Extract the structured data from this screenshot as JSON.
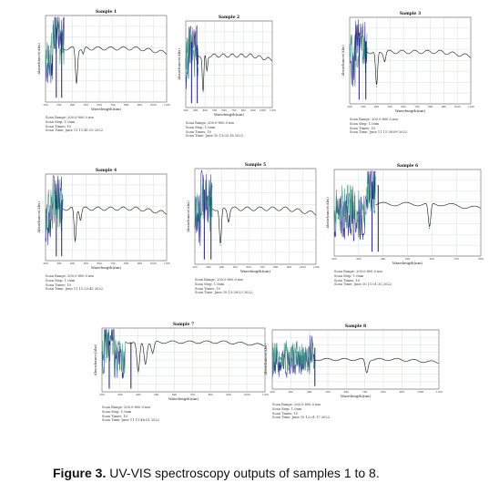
{
  "caption": {
    "label": "Figure 3.",
    "text": " UV-VIS spectroscopy outputs of samples 1 to 8."
  },
  "colors": {
    "trace_dark": "#1a1a7a",
    "trace_teal": "#2e8b7a",
    "baseline": "#111111",
    "grid": "#b8c9b8"
  },
  "chart_data": [
    {
      "type": "line",
      "title": "Sample 1",
      "xlabel": "Wavelength(nm)",
      "ylabel": "Absorbance(Abs)",
      "xlim": [
        200,
        1100
      ],
      "xticks": [
        "200",
        "300",
        "400",
        "500",
        "600",
        "700",
        "800",
        "900",
        "1000",
        "1100"
      ],
      "noise_end": 340,
      "peaks": [
        {
          "x": 280,
          "y": 0.86
        },
        {
          "x": 320,
          "y": 0.8
        }
      ],
      "dips": [
        {
          "x": 430,
          "y": 0.22
        },
        {
          "x": 480,
          "y": 0.55
        }
      ],
      "tail_level": 0.62,
      "scan_range": "Scan Range: 200.0-800.0 nm",
      "scan_step": "Scan Step: 1.0nm",
      "scan_times": "Scan Times: 10",
      "scan_time": "Scan Time: June 11 11:41:03 2022"
    },
    {
      "type": "line",
      "title": "Sample 2",
      "xlabel": "Wavelength(nm)",
      "ylabel": "Absorbance(Abs)",
      "xlim": [
        200,
        1100
      ],
      "xticks": [
        "200",
        "300",
        "400",
        "500",
        "600",
        "700",
        "800",
        "900",
        "1000",
        "1100"
      ],
      "noise_end": 330,
      "peaks": [
        {
          "x": 260,
          "y": 0.76
        },
        {
          "x": 320,
          "y": 0.72
        }
      ],
      "dips": [
        {
          "x": 380,
          "y": 0.18
        },
        {
          "x": 420,
          "y": 0.42
        }
      ],
      "tail_level": 0.6,
      "scan_range": "Scan Range: 200.0-800.0 nm",
      "scan_step": "Scan Step: 1.0nm",
      "scan_times": "Scan Times: 10",
      "scan_time": "Scan Time: June 10 13:02:18 2022"
    },
    {
      "type": "line",
      "title": "Sample 3",
      "xlabel": "Wavelength(nm)",
      "ylabel": "Absorbance(Abs)",
      "xlim": [
        200,
        1100
      ],
      "xticks": [
        "200",
        "300",
        "400",
        "500",
        "600",
        "700",
        "800",
        "900",
        "1000",
        "1100"
      ],
      "noise_end": 330,
      "peaks": [
        {
          "x": 270,
          "y": 0.76
        },
        {
          "x": 320,
          "y": 0.72
        }
      ],
      "dips": [
        {
          "x": 400,
          "y": 0.2
        },
        {
          "x": 460,
          "y": 0.5
        }
      ],
      "tail_level": 0.6,
      "scan_range": "Scan Range: 200.0-800.0 nm",
      "scan_step": "Scan Step: 1.0nm",
      "scan_times": "Scan Times: 10",
      "scan_time": "Scan Time: June 11 11:38:09 2022"
    },
    {
      "type": "line",
      "title": "Sample 4",
      "xlabel": "Wavelength(nm)",
      "ylabel": "Absorbance(Abs)",
      "xlim": [
        200,
        1100
      ],
      "xticks": [
        "200",
        "300",
        "400",
        "500",
        "600",
        "700",
        "800",
        "900",
        "1000",
        "1100"
      ],
      "noise_end": 330,
      "peaks": [
        {
          "x": 280,
          "y": 0.76
        },
        {
          "x": 320,
          "y": 0.7
        }
      ],
      "dips": [
        {
          "x": 420,
          "y": 0.22
        },
        {
          "x": 460,
          "y": 0.48
        }
      ],
      "tail_level": 0.6,
      "scan_range": "Scan Range: 200.0-800.0 nm",
      "scan_step": "Scan Step: 1.0nm",
      "scan_times": "Scan Times: 10",
      "scan_time": "Scan Time: June 11 11:23:45 2022"
    },
    {
      "type": "line",
      "title": "Sample 5",
      "xlabel": "Wavelength(nm)",
      "ylabel": "Absorbance(Abs)",
      "xlim": [
        200,
        1100
      ],
      "xticks": [
        "200",
        "300",
        "400",
        "500",
        "600",
        "700",
        "800",
        "900",
        "1000",
        "1100"
      ],
      "noise_end": 330,
      "peaks": [
        {
          "x": 270,
          "y": 0.78
        },
        {
          "x": 320,
          "y": 0.7
        }
      ],
      "dips": [
        {
          "x": 390,
          "y": 0.2
        },
        {
          "x": 450,
          "y": 0.46
        }
      ],
      "tail_level": 0.58,
      "scan_range": "Scan Range: 200.0-800.0 nm",
      "scan_step": "Scan Step: 1.0nm",
      "scan_times": "Scan Times: 10",
      "scan_time": "Scan Time: June 10 13:28:23 2022"
    },
    {
      "type": "line",
      "title": "Sample 6",
      "xlabel": "Wavelength(nm)",
      "ylabel": "Absorbance(Abs)",
      "xlim": [
        200,
        800
      ],
      "xticks": [
        "200",
        "300",
        "400",
        "500",
        "600",
        "700",
        "800"
      ],
      "noise_end": 370,
      "peaks": [
        {
          "x": 355,
          "y": 0.86
        },
        {
          "x": 380,
          "y": 0.82
        }
      ],
      "dips": [
        {
          "x": 590,
          "y": 0.32
        }
      ],
      "tail_level": 0.6,
      "scan_range": "Scan Range: 200.0-800.0 nm",
      "scan_step": "Scan Step: 1.0nm",
      "scan_times": "Scan Times: 10",
      "scan_time": "Scan Time: June 10 11:01:35 2022"
    },
    {
      "type": "line",
      "title": "Sample 7",
      "xlabel": "Wavelength(nm)",
      "ylabel": "Absorbance(Abs)",
      "xlim": [
        200,
        1100
      ],
      "xticks": [
        "200",
        "300",
        "400",
        "500",
        "600",
        "700",
        "800",
        "900",
        "1000",
        "1100"
      ],
      "noise_end": 330,
      "peaks": [
        {
          "x": 240,
          "y": 0.8
        },
        {
          "x": 360,
          "y": 0.78
        }
      ],
      "dips": [
        {
          "x": 400,
          "y": 0.3
        },
        {
          "x": 440,
          "y": 0.45
        },
        {
          "x": 480,
          "y": 0.6
        }
      ],
      "tail_level": 0.78,
      "scan_range": "Scan Range: 200.0-800.0 nm",
      "scan_step": "Scan Step: 1.0nm",
      "scan_times": "Scan Times: 10",
      "scan_time": "Scan Time: June 11 11:46:01 2022"
    },
    {
      "type": "line",
      "title": "Sample 8",
      "xlabel": "Wavelength(nm)",
      "ylabel": "Absorbance(Abs)",
      "xlim": [
        200,
        1100
      ],
      "xticks": [
        "200",
        "300",
        "400",
        "500",
        "600",
        "700",
        "800",
        "900",
        "1000",
        "1100"
      ],
      "noise_end": 430,
      "peaks": [
        {
          "x": 430,
          "y": 0.7
        }
      ],
      "dips": [
        {
          "x": 710,
          "y": 0.28
        }
      ],
      "tail_level": 0.5,
      "scan_range": "Scan Range: 200.0-800.0 nm",
      "scan_step": "Scan Step: 1.0nm",
      "scan_times": "Scan Times: 10",
      "scan_time": "Scan Time: June 10 12:01:17 2022"
    }
  ]
}
